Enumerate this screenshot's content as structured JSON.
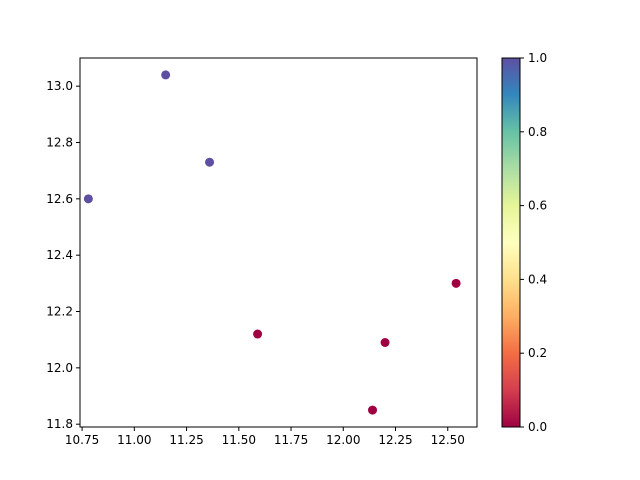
{
  "chart_data": {
    "type": "scatter",
    "title": "",
    "xlabel": "",
    "ylabel": "",
    "xlim": [
      10.74,
      12.64
    ],
    "ylim": [
      11.79,
      13.1
    ],
    "grid": false,
    "x_ticks": [
      10.75,
      11.0,
      11.25,
      11.5,
      11.75,
      12.0,
      12.25,
      12.5
    ],
    "x_tick_labels": [
      "10.75",
      "11.00",
      "11.25",
      "11.50",
      "11.75",
      "12.00",
      "12.25",
      "12.50"
    ],
    "y_ticks": [
      11.8,
      12.0,
      12.2,
      12.4,
      12.6,
      12.8,
      13.0
    ],
    "y_tick_labels": [
      "11.8",
      "12.0",
      "12.2",
      "12.4",
      "12.6",
      "12.8",
      "13.0"
    ],
    "points": [
      {
        "x": 10.78,
        "y": 12.6,
        "c": 1
      },
      {
        "x": 11.15,
        "y": 13.04,
        "c": 1
      },
      {
        "x": 11.36,
        "y": 12.73,
        "c": 1
      },
      {
        "x": 11.59,
        "y": 12.12,
        "c": 0
      },
      {
        "x": 12.2,
        "y": 12.09,
        "c": 0
      },
      {
        "x": 12.14,
        "y": 11.85,
        "c": 0
      },
      {
        "x": 12.54,
        "y": 12.3,
        "c": 0
      }
    ],
    "colormap": "Spectral",
    "colorbar": {
      "range": [
        0.0,
        1.0
      ],
      "ticks": [
        0.0,
        0.2,
        0.4,
        0.6,
        0.8,
        1.0
      ],
      "tick_labels": [
        "0.0",
        "0.2",
        "0.4",
        "0.6",
        "0.8",
        "1.0"
      ]
    },
    "colors": {
      "low": "#9e0142",
      "high": "#5e4fa2"
    }
  }
}
